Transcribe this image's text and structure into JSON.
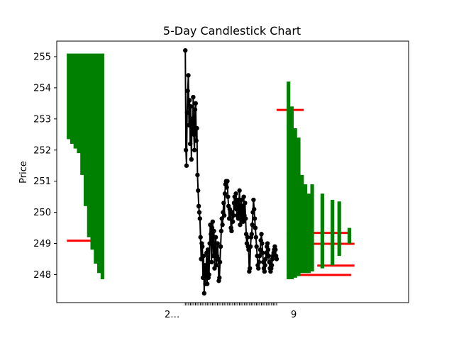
{
  "chart_data": {
    "type": "line",
    "title": "5-Day Candlestick Chart",
    "xlabel": "",
    "ylabel": "Price",
    "ylim": [
      247.1,
      255.5
    ],
    "yticks": [
      248,
      249,
      250,
      251,
      252,
      253,
      254,
      255
    ],
    "xlim": [
      -38,
      66
    ],
    "grid": false,
    "xtick_label": "2…",
    "xtick_label_end": "9",
    "colors": {
      "up": "#008000",
      "down": "#ff0000",
      "line": "#000000",
      "axes": "#000000"
    },
    "candles": [
      {
        "x": -35,
        "open": 252.35,
        "close": 255.1
      },
      {
        "x": -34,
        "open": 252.2,
        "close": 255.1
      },
      {
        "x": -33,
        "open": 252.05,
        "close": 255.1
      },
      {
        "x": -32,
        "open": 251.9,
        "close": 255.1
      },
      {
        "x": -31,
        "open": 251.2,
        "close": 255.1
      },
      {
        "x": -30,
        "open": 250.2,
        "close": 255.1
      },
      {
        "x": -29,
        "open": 249.2,
        "close": 255.1
      },
      {
        "x": -28,
        "open": 248.8,
        "close": 255.1
      },
      {
        "x": -27,
        "open": 248.35,
        "close": 255.1
      },
      {
        "x": -26,
        "open": 248.05,
        "close": 255.1
      },
      {
        "x": -25,
        "open": 247.85,
        "close": 255.1
      },
      {
        "x": 30,
        "open": 247.85,
        "close": 254.2
      },
      {
        "x": 31,
        "open": 247.85,
        "close": 253.4
      },
      {
        "x": 32,
        "open": 247.9,
        "close": 252.7
      },
      {
        "x": 33,
        "open": 247.95,
        "close": 252.4
      },
      {
        "x": 34,
        "open": 248.05,
        "close": 251.2
      },
      {
        "x": 35,
        "open": 248.05,
        "close": 250.9
      },
      {
        "x": 36,
        "open": 248.05,
        "close": 250.6
      },
      {
        "x": 37,
        "open": 248.1,
        "close": 250.9
      },
      {
        "x": 40,
        "open": 248.2,
        "close": 250.6
      },
      {
        "x": 43,
        "open": 248.3,
        "close": 250.4
      },
      {
        "x": 45,
        "open": 248.6,
        "close": 250.35
      },
      {
        "x": 48,
        "open": 249.0,
        "close": 249.5
      }
    ],
    "down_edges": [
      {
        "x0": -35,
        "x1": -26,
        "value": 249.1
      },
      {
        "x0": 30,
        "x1": 47,
        "value": 249.35
      },
      {
        "x0": 30,
        "x1": 49,
        "value": 249.0
      },
      {
        "x0": 39,
        "x1": 49,
        "value": 248.3
      },
      {
        "x0": 30,
        "x1": 48,
        "value": 248.0
      },
      {
        "x0": 27,
        "x1": 34,
        "value": 253.3
      }
    ],
    "price_series": {
      "x": [
        0.0,
        0.18,
        0.36,
        0.54,
        0.72,
        0.9,
        1.08,
        1.26,
        1.44,
        1.62,
        1.8,
        1.98,
        2.16,
        2.34,
        2.52,
        2.7,
        2.88,
        3.06,
        3.24,
        3.42,
        3.6,
        3.78,
        3.96,
        4.14,
        4.32,
        4.5,
        4.68,
        4.86,
        5.04,
        5.22,
        5.4,
        5.58,
        5.76,
        5.94,
        6.12,
        6.3,
        6.48,
        6.66,
        6.84,
        7.02,
        7.2,
        7.38,
        7.56,
        7.74,
        7.92,
        8.1,
        8.28,
        8.46,
        8.64,
        8.82,
        9.0,
        9.18,
        9.36,
        9.54,
        9.72,
        9.9,
        10.08,
        10.26,
        10.44,
        10.62,
        10.8,
        10.98,
        11.16,
        11.34,
        11.52,
        11.7,
        11.88,
        12.06,
        12.24,
        12.42,
        12.6,
        12.78,
        12.96,
        13.14,
        13.32,
        13.5,
        13.68,
        13.86,
        14.04,
        14.22,
        14.4,
        14.58,
        14.76,
        14.94,
        15.12,
        15.3,
        15.48,
        15.66,
        15.84,
        16.02,
        16.2,
        16.38,
        16.56,
        16.74,
        16.92,
        17.1,
        17.28,
        17.46,
        17.64,
        17.82,
        18.0,
        18.18,
        18.36,
        18.54,
        18.72,
        18.9,
        19.08,
        19.26,
        19.44,
        19.62,
        19.8,
        19.98,
        20.16,
        20.34,
        20.52,
        20.7,
        20.88,
        21.06,
        21.24,
        21.42,
        21.6,
        21.78,
        21.96,
        22.14,
        22.32,
        22.5,
        22.68,
        22.86,
        23.04,
        23.22,
        23.4,
        23.58,
        23.76,
        23.94,
        24.12,
        24.3,
        24.48,
        24.66,
        24.84,
        25.02,
        25.2,
        25.38,
        25.56,
        25.74,
        25.92,
        26.1,
        26.28,
        26.46,
        26.64,
        26.82,
        27.0
      ],
      "y": [
        255.2,
        252.0,
        251.5,
        253.2,
        253.9,
        254.4,
        252.8,
        253.6,
        252.2,
        253.4,
        251.7,
        253.0,
        252.6,
        253.7,
        252.5,
        252.0,
        253.3,
        253.5,
        252.3,
        252.7,
        251.2,
        250.7,
        250.2,
        250.0,
        249.8,
        249.2,
        248.5,
        249.0,
        248.9,
        247.9,
        248.6,
        247.4,
        248.3,
        247.7,
        248.1,
        248.7,
        247.7,
        248.8,
        247.9,
        248.0,
        249.0,
        249.6,
        249.3,
        248.4,
        249.5,
        249.7,
        248.6,
        249.4,
        248.2,
        248.8,
        249.2,
        248.3,
        248.6,
        249.0,
        248.5,
        247.8,
        247.9,
        248.4,
        248.9,
        249.4,
        249.8,
        249.6,
        250.0,
        250.3,
        249.9,
        250.6,
        250.9,
        251.0,
        250.8,
        251.0,
        250.5,
        250.2,
        249.8,
        250.1,
        250.0,
        249.5,
        249.4,
        250.0,
        249.7,
        249.9,
        250.3,
        250.5,
        250.2,
        250.6,
        250.1,
        249.9,
        250.4,
        249.8,
        250.2,
        250.7,
        249.6,
        249.8,
        250.4,
        249.9,
        250.2,
        249.7,
        250.5,
        249.9,
        250.3,
        249.8,
        249.3,
        249.0,
        249.2,
        248.9,
        248.8,
        248.1,
        248.2,
        248.9,
        249.2,
        249.3,
        249.6,
        250.0,
        250.4,
        250.1,
        249.8,
        249.5,
        249.2,
        248.9,
        248.6,
        248.3,
        248.2,
        248.4,
        248.6,
        248.8,
        249.1,
        249.3,
        249.0,
        248.7,
        248.4,
        248.2,
        248.1,
        248.3,
        248.5,
        248.7,
        248.9,
        249.0,
        248.8,
        248.6,
        248.4,
        248.2,
        248.1,
        248.2,
        248.3,
        248.5,
        248.6,
        248.7,
        248.8,
        248.9,
        248.8,
        248.6,
        248.5
      ]
    }
  }
}
